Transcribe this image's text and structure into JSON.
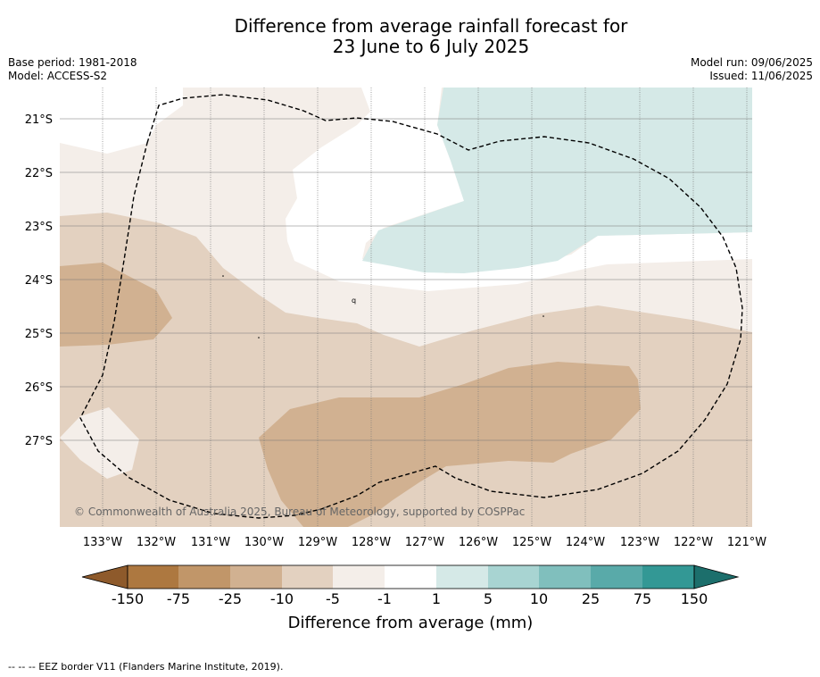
{
  "title": {
    "line1": "Difference from average rainfall forecast for",
    "line2": "23 June to 6 July 2025"
  },
  "meta": {
    "base_period": "Base period: 1981-2018",
    "model": "Model: ACCESS-S2",
    "model_run": "Model run: 09/06/2025",
    "issued": "Issued: 11/06/2025"
  },
  "map": {
    "copyright": "© Commonwealth of Australia 2025, Bureau of Meteorology, supported by COSPPac",
    "lat_labels": [
      "21°S",
      "22°S",
      "23°S",
      "24°S",
      "25°S",
      "26°S",
      "27°S"
    ],
    "lon_labels": [
      "133°W",
      "132°W",
      "131°W",
      "130°W",
      "129°W",
      "128°W",
      "127°W",
      "126°W",
      "125°W",
      "124°W",
      "123°W",
      "122°W",
      "121°W"
    ],
    "colors": {
      "minus10_minus5": "#e3d1c0",
      "minus25_minus10": "#d1b191",
      "minus5_minus1": "#f4eee9",
      "plus1_plus5": "#d5e9e7"
    }
  },
  "legend": {
    "tick_labels": [
      "-150",
      "-75",
      "-25",
      "-10",
      "-5",
      "-1",
      "1",
      "5",
      "10",
      "25",
      "75",
      "150"
    ],
    "title": "Difference from average (mm)",
    "colors": [
      "#8e5a2b",
      "#ad7840",
      "#c19669",
      "#d1b191",
      "#e3d1c0",
      "#f4eee9",
      "#ffffff",
      "#d5e9e7",
      "#a8d4d2",
      "#80bfbd",
      "#59aaa9",
      "#339895",
      "#1c6f6c"
    ]
  },
  "footnote": "-- -- -- EEZ border V11 (Flanders Marine Institute, 2019)."
}
